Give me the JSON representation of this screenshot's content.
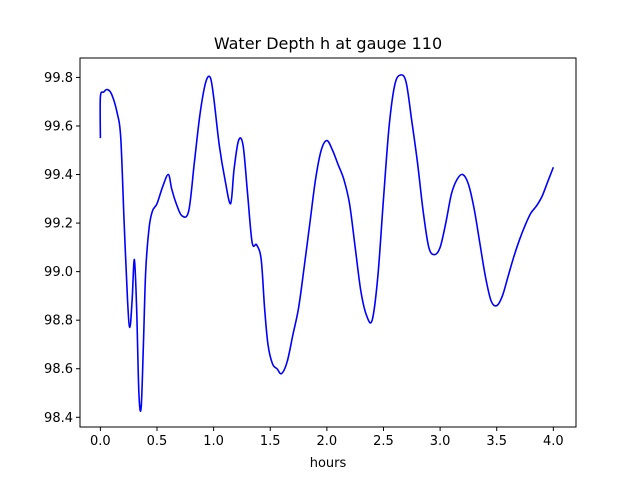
{
  "chart_data": {
    "type": "line",
    "title": "Water Depth h at gauge 110",
    "xlabel": "hours",
    "ylabel": "",
    "xlim": [
      -0.18,
      4.2
    ],
    "ylim": [
      98.36,
      99.88
    ],
    "xticks": [
      0.0,
      0.5,
      1.0,
      1.5,
      2.0,
      2.5,
      3.0,
      3.5,
      4.0
    ],
    "xtick_labels": [
      "0.0",
      "0.5",
      "1.0",
      "1.5",
      "2.0",
      "2.5",
      "3.0",
      "3.5",
      "4.0"
    ],
    "yticks": [
      98.4,
      98.6,
      98.8,
      99.0,
      99.2,
      99.4,
      99.6,
      99.8
    ],
    "ytick_labels": [
      "98.4",
      "98.6",
      "98.8",
      "99.0",
      "99.2",
      "99.4",
      "99.6",
      "99.8"
    ],
    "grid": false,
    "series": [
      {
        "color": "#0000ff",
        "x": [
          0.0,
          0.0,
          0.03,
          0.06,
          0.1,
          0.15,
          0.18,
          0.21,
          0.24,
          0.26,
          0.28,
          0.3,
          0.32,
          0.34,
          0.36,
          0.38,
          0.4,
          0.43,
          0.46,
          0.5,
          0.55,
          0.6,
          0.63,
          0.67,
          0.72,
          0.78,
          0.83,
          0.88,
          0.93,
          0.97,
          1.0,
          1.05,
          1.1,
          1.15,
          1.18,
          1.22,
          1.26,
          1.3,
          1.34,
          1.38,
          1.42,
          1.45,
          1.48,
          1.52,
          1.56,
          1.6,
          1.65,
          1.7,
          1.75,
          1.8,
          1.85,
          1.9,
          1.95,
          2.0,
          2.05,
          2.1,
          2.15,
          2.2,
          2.25,
          2.3,
          2.35,
          2.4,
          2.45,
          2.5,
          2.55,
          2.6,
          2.65,
          2.7,
          2.75,
          2.8,
          2.85,
          2.9,
          2.95,
          3.0,
          3.05,
          3.1,
          3.15,
          3.2,
          3.25,
          3.3,
          3.35,
          3.4,
          3.45,
          3.5,
          3.55,
          3.6,
          3.65,
          3.7,
          3.75,
          3.8,
          3.85,
          3.9,
          3.95,
          4.0
        ],
        "y": [
          99.55,
          99.72,
          99.74,
          99.75,
          99.73,
          99.65,
          99.55,
          99.2,
          98.88,
          98.77,
          98.88,
          99.05,
          98.85,
          98.5,
          98.44,
          98.7,
          99.0,
          99.18,
          99.25,
          99.28,
          99.35,
          99.4,
          99.34,
          99.28,
          99.23,
          99.25,
          99.45,
          99.65,
          99.78,
          99.8,
          99.72,
          99.52,
          99.38,
          99.28,
          99.42,
          99.54,
          99.52,
          99.32,
          99.12,
          99.11,
          99.05,
          98.85,
          98.7,
          98.62,
          98.6,
          98.58,
          98.63,
          98.74,
          98.85,
          99.02,
          99.2,
          99.38,
          99.5,
          99.54,
          99.5,
          99.44,
          99.38,
          99.28,
          99.1,
          98.92,
          98.82,
          98.8,
          98.98,
          99.3,
          99.6,
          99.77,
          99.81,
          99.78,
          99.62,
          99.45,
          99.25,
          99.1,
          99.07,
          99.1,
          99.2,
          99.32,
          99.38,
          99.4,
          99.36,
          99.26,
          99.12,
          98.98,
          98.88,
          98.86,
          98.9,
          98.98,
          99.06,
          99.13,
          99.19,
          99.24,
          99.27,
          99.31,
          99.37,
          99.43
        ]
      }
    ]
  }
}
